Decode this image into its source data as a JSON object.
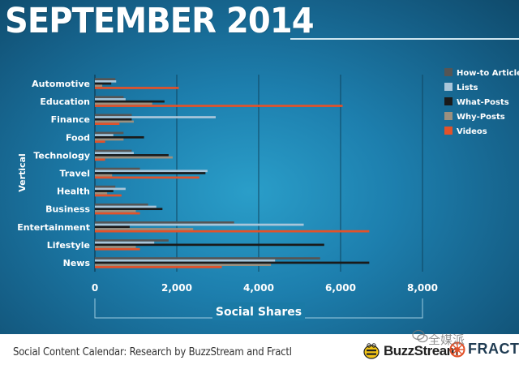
{
  "header": {
    "title": "SEPTEMBER 2014"
  },
  "footer": {
    "caption": "Social Content Calendar: Research by BuzzStream and Fractl",
    "buzzstream_logo": "BuzzStream",
    "fractl_logo": "FRACTL",
    "watermark": "全媒派"
  },
  "colors": {
    "how_to_article": "#555555",
    "lists": "#a9c6da",
    "what_posts": "#1a1a1a",
    "why_posts": "#9b907f",
    "videos": "#e2522a"
  },
  "chart_data": {
    "type": "bar",
    "orientation": "horizontal",
    "xlabel": "Social Shares",
    "ylabel": "Vertical",
    "xlim": [
      0,
      8000
    ],
    "xticks": [
      "0",
      "2,000",
      "4,000",
      "6,000",
      "8,000"
    ],
    "grid": true,
    "legend_position": "right",
    "categories": [
      "Automotive",
      "Education",
      "Finance",
      "Food",
      "Technology",
      "Travel",
      "Health",
      "Business",
      "Entertainment",
      "Lifestyle",
      "News"
    ],
    "series": [
      {
        "name": "How-to Article",
        "color": "#555555",
        "values": [
          500,
          700,
          900,
          700,
          900,
          1100,
          500,
          1300,
          3400,
          1800,
          5500
        ]
      },
      {
        "name": "Lists",
        "color": "#a9c6da",
        "values": [
          520,
          750,
          2950,
          450,
          950,
          2750,
          750,
          1500,
          5100,
          1450,
          4400
        ]
      },
      {
        "name": "What-Posts",
        "color": "#1a1a1a",
        "values": [
          400,
          1700,
          900,
          1200,
          1800,
          2700,
          450,
          1650,
          850,
          5600,
          6700
        ]
      },
      {
        "name": "Why-Posts",
        "color": "#9b907f",
        "values": [
          180,
          1400,
          950,
          700,
          1900,
          420,
          300,
          1000,
          2400,
          1000,
          4300
        ]
      },
      {
        "name": "Videos",
        "color": "#e2522a",
        "values": [
          2050,
          6050,
          600,
          250,
          250,
          2550,
          650,
          1100,
          6700,
          1100,
          3100
        ]
      }
    ]
  }
}
